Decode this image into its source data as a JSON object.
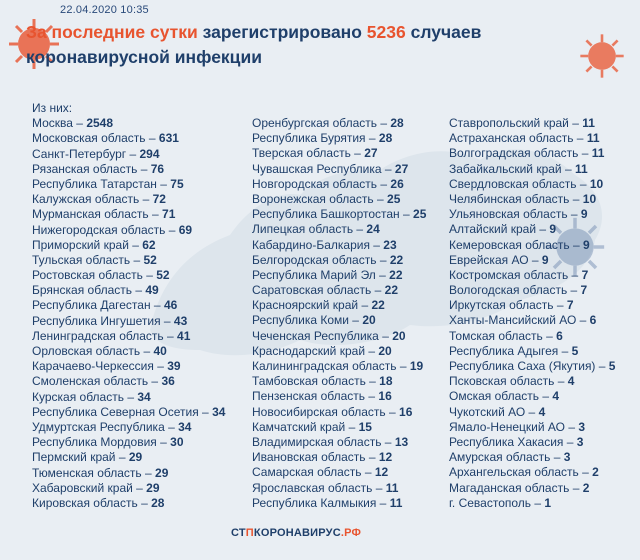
{
  "header": {
    "date": "22.04.2020 10:35",
    "title_part1": "За последние сутки",
    "title_part2": " зарегистрировано ",
    "title_number": "5236",
    "title_part3": " случаев",
    "subtitle": "коронавирусной инфекции"
  },
  "intro": "Из них:",
  "colors": {
    "accent": "#e8542f",
    "text": "#1f3f6a",
    "background": "#e9eef3"
  },
  "columns": [
    [
      {
        "name": "Москва",
        "value": "2548"
      },
      {
        "name": "Московская область",
        "value": "631"
      },
      {
        "name": "Санкт-Петербург",
        "value": "294"
      },
      {
        "name": "Рязанская область",
        "value": "76"
      },
      {
        "name": "Республика Татарстан",
        "value": "75"
      },
      {
        "name": "Калужская область",
        "value": "72"
      },
      {
        "name": "Мурманская область",
        "value": "71"
      },
      {
        "name": "Нижегородская область",
        "value": "69"
      },
      {
        "name": "Приморский край",
        "value": "62"
      },
      {
        "name": "Тульская область",
        "value": "52"
      },
      {
        "name": "Ростовская область",
        "value": "52"
      },
      {
        "name": "Брянская область",
        "value": "49"
      },
      {
        "name": "Республика Дагестан",
        "value": "46"
      },
      {
        "name": "Республика Ингушетия",
        "value": "43"
      },
      {
        "name": "Ленинградская область",
        "value": "41"
      },
      {
        "name": "Орловская область",
        "value": "40"
      },
      {
        "name": "Карачаево-Черкессия",
        "value": "39"
      },
      {
        "name": "Смоленская область",
        "value": "36"
      },
      {
        "name": "Курская область",
        "value": "34"
      },
      {
        "name": "Республика Северная Осетия",
        "value": "34"
      },
      {
        "name": "Удмуртская Республика",
        "value": "34"
      },
      {
        "name": "Республика Мордовия",
        "value": "30"
      },
      {
        "name": "Пермский край",
        "value": "29"
      },
      {
        "name": "Тюменская область",
        "value": "29"
      },
      {
        "name": "Хабаровский край",
        "value": "29"
      },
      {
        "name": "Кировская область",
        "value": "28"
      }
    ],
    [
      {
        "name": "Оренбургская область",
        "value": "28"
      },
      {
        "name": "Республика Бурятия",
        "value": "28"
      },
      {
        "name": "Тверская область",
        "value": "27"
      },
      {
        "name": "Чувашская Республика",
        "value": "27"
      },
      {
        "name": "Новгородская область",
        "value": "26"
      },
      {
        "name": "Воронежская область",
        "value": "25"
      },
      {
        "name": "Республика Башкортостан",
        "value": "25"
      },
      {
        "name": "Липецкая область",
        "value": "24"
      },
      {
        "name": "Кабардино-Балкария",
        "value": "23"
      },
      {
        "name": "Белгородская область",
        "value": "22"
      },
      {
        "name": "Республика Марий Эл",
        "value": "22"
      },
      {
        "name": "Саратовская область",
        "value": "22"
      },
      {
        "name": "Красноярский край",
        "value": "22"
      },
      {
        "name": "Республика Коми",
        "value": "20"
      },
      {
        "name": "Чеченская Республика",
        "value": "20"
      },
      {
        "name": "Краснодарский край",
        "value": "20"
      },
      {
        "name": "Калининградская область",
        "value": "19"
      },
      {
        "name": "Тамбовская область",
        "value": "18"
      },
      {
        "name": "Пензенская область",
        "value": "16"
      },
      {
        "name": "Новосибирская область",
        "value": "16"
      },
      {
        "name": "Камчатский край",
        "value": "15"
      },
      {
        "name": "Владимирская область",
        "value": "13"
      },
      {
        "name": "Ивановская область",
        "value": "12"
      },
      {
        "name": "Самарская область",
        "value": "12"
      },
      {
        "name": "Ярославская область",
        "value": "11"
      },
      {
        "name": "Республика Калмыкия",
        "value": "11"
      }
    ],
    [
      {
        "name": "Ставропольский край",
        "value": "11"
      },
      {
        "name": "Астраханская область",
        "value": "11"
      },
      {
        "name": "Волгоградская область",
        "value": "11"
      },
      {
        "name": "Забайкальский край",
        "value": "11"
      },
      {
        "name": "Свердловская область",
        "value": "10"
      },
      {
        "name": "Челябинская область",
        "value": "10"
      },
      {
        "name": "Ульяновская область",
        "value": "9"
      },
      {
        "name": "Алтайский край",
        "value": "9"
      },
      {
        "name": "Кемеровская область",
        "value": "9"
      },
      {
        "name": "Еврейская АО",
        "value": "9"
      },
      {
        "name": "Костромская область",
        "value": "7"
      },
      {
        "name": "Вологодская область",
        "value": "7"
      },
      {
        "name": "Иркутская область",
        "value": "7"
      },
      {
        "name": "Ханты-Мансийский АО",
        "value": "6"
      },
      {
        "name": "Томская область",
        "value": "6"
      },
      {
        "name": "Республика Адыгея",
        "value": "5"
      },
      {
        "name": "Республика Саха (Якутия)",
        "value": "5"
      },
      {
        "name": "Псковская область",
        "value": "4"
      },
      {
        "name": "Омская область",
        "value": "4"
      },
      {
        "name": "Чукотский АО",
        "value": "4"
      },
      {
        "name": "Ямало-Ненецкий АО",
        "value": "3"
      },
      {
        "name": "Республика Хакасия",
        "value": "3"
      },
      {
        "name": "Амурская область",
        "value": "3"
      },
      {
        "name": "Архангельская область",
        "value": "2"
      },
      {
        "name": "Магаданская область",
        "value": "2"
      },
      {
        "name": "г. Севастополь",
        "value": "1"
      }
    ]
  ],
  "footer": {
    "part1": "СТ",
    "part2": "П",
    "part3": "КОРОНАВИРУС",
    "part4": ".РФ"
  }
}
